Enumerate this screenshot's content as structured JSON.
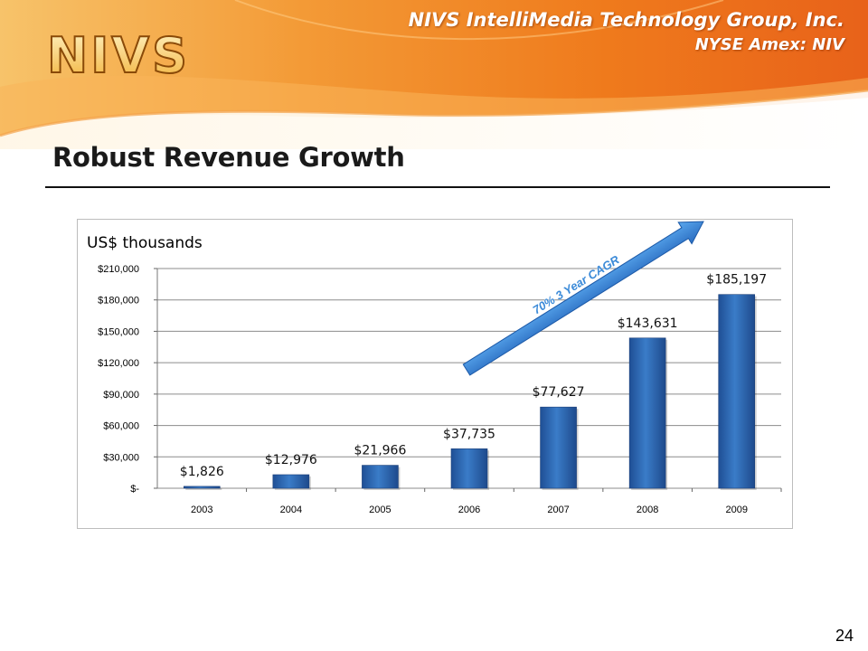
{
  "header": {
    "logo_text": "NIVS",
    "company": "NIVS IntelliMedia Technology Group, Inc.",
    "ticker": "NYSE Amex: NIV"
  },
  "slide": {
    "title": "Robust Revenue Growth",
    "page_number": "24"
  },
  "colors": {
    "bar": "#2f66b0",
    "arrow": "#3a86d6",
    "header_orange": "#f08020",
    "grid": "#8c8c8c"
  },
  "chart_data": {
    "type": "bar",
    "unit_label": "US$ thousands",
    "categories": [
      "2003",
      "2004",
      "2005",
      "2006",
      "2007",
      "2008",
      "2009"
    ],
    "values": [
      1826,
      12976,
      21966,
      37735,
      77627,
      143631,
      185197
    ],
    "data_labels": [
      "$1,826",
      "$12,976",
      "$21,966",
      "$37,735",
      "$77,627",
      "$143,631",
      "$185,197"
    ],
    "y_ticks": [
      0,
      30000,
      60000,
      90000,
      120000,
      150000,
      180000,
      210000
    ],
    "y_tick_labels": [
      "$-",
      "$30,000",
      "$60,000",
      "$90,000",
      "$120,000",
      "$150,000",
      "$180,000",
      "$210,000"
    ],
    "ylim": [
      0,
      210000
    ],
    "grid": true,
    "annotation": "70% 3 Year CAGR"
  }
}
